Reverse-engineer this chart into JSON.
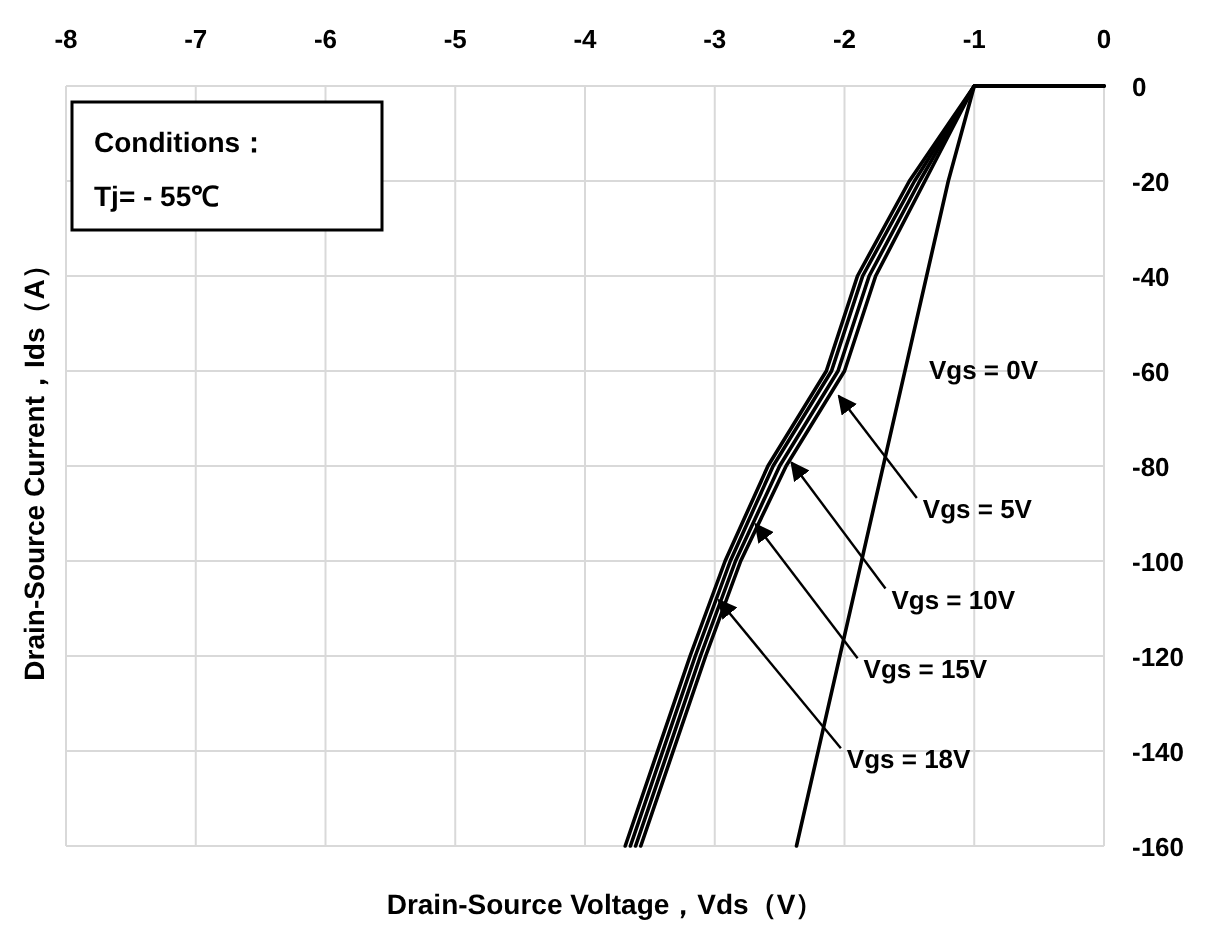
{
  "chart_data": {
    "type": "line",
    "xlabel": "Drain-Source Voltage，Vds（V）",
    "ylabel": "Drain-Source Current，Ids（A）",
    "annotations": [
      "Conditions：",
      "Tj= - 55℃"
    ],
    "xlim": [
      -8,
      0
    ],
    "xticks": [
      -8,
      -7,
      -6,
      -5,
      -4,
      -3,
      -2,
      -1,
      0
    ],
    "ylim": [
      -160,
      0
    ],
    "yticks": [
      0,
      -20,
      -40,
      -60,
      -80,
      -100,
      -120,
      -140,
      -160
    ],
    "grid": true,
    "legend": false,
    "marker": "none",
    "line_style": "solid",
    "series": [
      {
        "name": "Vgs = 0V",
        "color": "#000000",
        "x": [
          0,
          -1,
          -1.2,
          -2.37
        ],
        "values": [
          0,
          0,
          -20,
          -160
        ]
      },
      {
        "name": "Vgs = 5V",
        "color": "#000000",
        "x": [
          0,
          -1,
          -1.38,
          -1.76,
          -2.0,
          -2.45,
          -2.8,
          -3.07,
          -3.57
        ],
        "values": [
          0,
          0,
          -20,
          -40,
          -60,
          -80,
          -100,
          -120,
          -160
        ]
      },
      {
        "name": "Vgs = 10V",
        "color": "#000000",
        "x": [
          0,
          -1,
          -1.42,
          -1.81,
          -2.05,
          -2.5,
          -2.84,
          -3.11,
          -3.61
        ],
        "values": [
          0,
          0,
          -20,
          -40,
          -60,
          -80,
          -100,
          -120,
          -160
        ]
      },
      {
        "name": "Vgs = 15V",
        "color": "#000000",
        "x": [
          0,
          -1,
          -1.46,
          -1.86,
          -2.1,
          -2.55,
          -2.88,
          -3.15,
          -3.65
        ],
        "values": [
          0,
          0,
          -20,
          -40,
          -60,
          -80,
          -100,
          -120,
          -160
        ]
      },
      {
        "name": "Vgs = 18V",
        "color": "#000000",
        "x": [
          0,
          -1,
          -1.5,
          -1.9,
          -2.14,
          -2.59,
          -2.92,
          -3.19,
          -3.69
        ],
        "values": [
          0,
          0,
          -20,
          -40,
          -60,
          -80,
          -100,
          -120,
          -160
        ]
      }
    ]
  }
}
